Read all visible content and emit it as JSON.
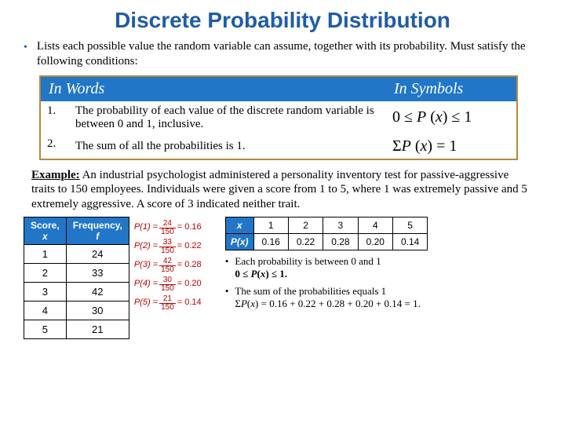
{
  "title": "Discrete Probability Distribution",
  "intro": "Lists each possible value the random variable can assume, together with its probability. Must satisfy the following conditions:",
  "cond_header_words": "In Words",
  "cond_header_symbols": "In Symbols",
  "cond": [
    {
      "n": "1.",
      "words": "The probability of each value of the discrete random variable is between 0 and 1, inclusive.",
      "sym": "0 ≤ P (x) ≤ 1"
    },
    {
      "n": "2.",
      "words": "The sum of all the probabilities is 1.",
      "sym": "ΣP (x) = 1"
    }
  ],
  "example_label": "Example:",
  "example_text": " An industrial psychologist administered a personality inventory test for passive-aggressive traits to 150 employees. Individuals were given a score from 1 to 5, where 1 was extremely passive and 5 extremely aggressive. A score of 3 indicated neither trait.",
  "freq_headers": [
    "Score,\nx",
    "Frequency,\nf"
  ],
  "freq_rows": [
    [
      "1",
      "24"
    ],
    [
      "2",
      "33"
    ],
    [
      "3",
      "42"
    ],
    [
      "4",
      "30"
    ],
    [
      "5",
      "21"
    ]
  ],
  "calcs": [
    {
      "lhs": "P(1) =",
      "num": "24",
      "den": "150",
      "res": "= 0.16"
    },
    {
      "lhs": "P(2) =",
      "num": "33",
      "den": "150",
      "res": "= 0.22"
    },
    {
      "lhs": "P(3) =",
      "num": "42",
      "den": "150",
      "res": "= 0.28"
    },
    {
      "lhs": "P(4) =",
      "num": "30",
      "den": "150",
      "res": "= 0.20"
    },
    {
      "lhs": "P(5) =",
      "num": "21",
      "den": "150",
      "res": "= 0.14"
    }
  ],
  "prob_row_headers": [
    "x",
    "P(x)"
  ],
  "prob_x": [
    "1",
    "2",
    "3",
    "4",
    "5"
  ],
  "prob_p": [
    "0.16",
    "0.22",
    "0.28",
    "0.20",
    "0.14"
  ],
  "note1a": "Each probability is between 0 and 1",
  "note1b": "0 ≤ P(x) ≤ 1.",
  "note2a": "The sum of the probabilities equals 1",
  "note2b": "ΣP(x) = 0.16 + 0.22 + 0.28 + 0.20 + 0.14 = 1."
}
